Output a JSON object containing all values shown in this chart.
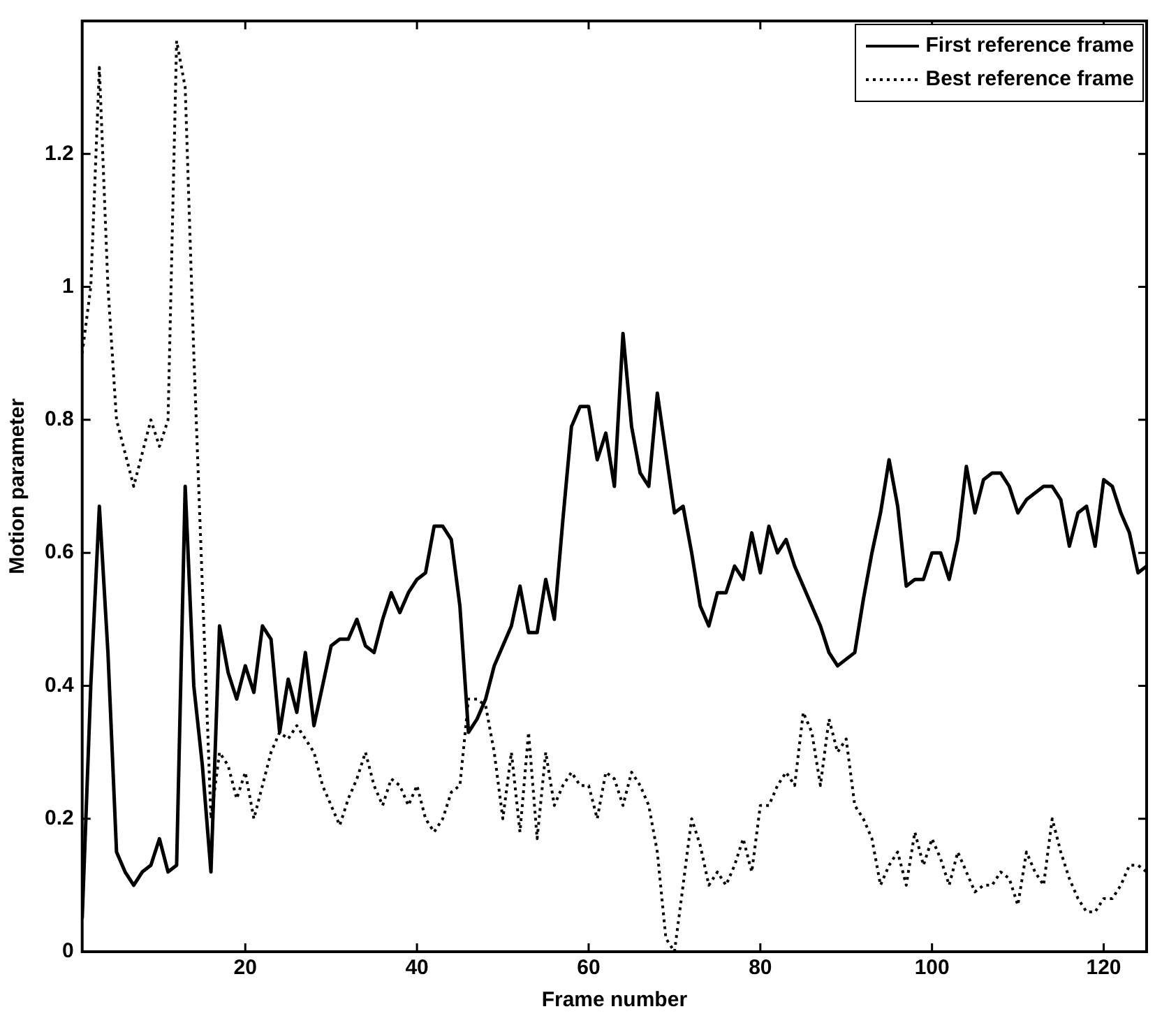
{
  "chart_data": {
    "type": "line",
    "xlabel": "Frame number",
    "ylabel": "Motion parameter",
    "x": [
      1,
      2,
      3,
      4,
      5,
      6,
      7,
      8,
      9,
      10,
      11,
      12,
      13,
      14,
      15,
      16,
      17,
      18,
      19,
      20,
      21,
      22,
      23,
      24,
      25,
      26,
      27,
      28,
      29,
      30,
      31,
      32,
      33,
      34,
      35,
      36,
      37,
      38,
      39,
      40,
      41,
      42,
      43,
      44,
      45,
      46,
      47,
      48,
      49,
      50,
      51,
      52,
      53,
      54,
      55,
      56,
      57,
      58,
      59,
      60,
      61,
      62,
      63,
      64,
      65,
      66,
      67,
      68,
      69,
      70,
      71,
      72,
      73,
      74,
      75,
      76,
      77,
      78,
      79,
      80,
      81,
      82,
      83,
      84,
      85,
      86,
      87,
      88,
      89,
      90,
      91,
      92,
      93,
      94,
      95,
      96,
      97,
      98,
      99,
      100,
      101,
      102,
      103,
      104,
      105,
      106,
      107,
      108,
      109,
      110,
      111,
      112,
      113,
      114,
      115,
      116,
      117,
      118,
      119,
      120,
      121,
      122,
      123,
      124,
      125
    ],
    "series": [
      {
        "name": "First reference frame",
        "color": "#000000",
        "line_style": "solid",
        "values": [
          0.05,
          0.4,
          0.67,
          0.45,
          0.15,
          0.12,
          0.1,
          0.12,
          0.13,
          0.17,
          0.12,
          0.13,
          0.7,
          0.4,
          0.28,
          0.12,
          0.49,
          0.42,
          0.38,
          0.43,
          0.39,
          0.49,
          0.47,
          0.33,
          0.41,
          0.36,
          0.45,
          0.34,
          0.4,
          0.46,
          0.47,
          0.47,
          0.5,
          0.46,
          0.45,
          0.5,
          0.54,
          0.51,
          0.54,
          0.56,
          0.57,
          0.64,
          0.64,
          0.62,
          0.52,
          0.33,
          0.35,
          0.38,
          0.43,
          0.46,
          0.49,
          0.55,
          0.48,
          0.48,
          0.56,
          0.5,
          0.65,
          0.79,
          0.82,
          0.82,
          0.74,
          0.78,
          0.7,
          0.93,
          0.79,
          0.72,
          0.7,
          0.84,
          0.75,
          0.66,
          0.67,
          0.6,
          0.52,
          0.49,
          0.54,
          0.54,
          0.58,
          0.56,
          0.63,
          0.57,
          0.64,
          0.6,
          0.62,
          0.58,
          0.55,
          0.52,
          0.49,
          0.45,
          0.43,
          0.44,
          0.45,
          0.53,
          0.6,
          0.66,
          0.74,
          0.67,
          0.55,
          0.56,
          0.56,
          0.6,
          0.6,
          0.56,
          0.62,
          0.73,
          0.66,
          0.71,
          0.72,
          0.72,
          0.7,
          0.66,
          0.68,
          0.69,
          0.7,
          0.7,
          0.68,
          0.61,
          0.66,
          0.67,
          0.61,
          0.71,
          0.7,
          0.66,
          0.63,
          0.57,
          0.58
        ]
      },
      {
        "name": "Best reference frame",
        "color": "#000000",
        "line_style": "dotted",
        "values": [
          0.9,
          1.0,
          1.33,
          1.0,
          0.8,
          0.75,
          0.7,
          0.75,
          0.8,
          0.76,
          0.8,
          1.37,
          1.3,
          0.9,
          0.55,
          0.2,
          0.3,
          0.28,
          0.23,
          0.27,
          0.2,
          0.25,
          0.3,
          0.33,
          0.32,
          0.34,
          0.32,
          0.3,
          0.25,
          0.22,
          0.19,
          0.23,
          0.26,
          0.3,
          0.25,
          0.22,
          0.26,
          0.25,
          0.22,
          0.25,
          0.2,
          0.18,
          0.2,
          0.24,
          0.25,
          0.38,
          0.38,
          0.37,
          0.3,
          0.2,
          0.3,
          0.18,
          0.33,
          0.17,
          0.3,
          0.22,
          0.25,
          0.27,
          0.25,
          0.25,
          0.2,
          0.27,
          0.26,
          0.22,
          0.27,
          0.25,
          0.22,
          0.15,
          0.02,
          0.0,
          0.1,
          0.2,
          0.16,
          0.1,
          0.12,
          0.1,
          0.13,
          0.17,
          0.12,
          0.22,
          0.22,
          0.25,
          0.27,
          0.25,
          0.36,
          0.33,
          0.25,
          0.35,
          0.3,
          0.32,
          0.22,
          0.2,
          0.17,
          0.1,
          0.13,
          0.15,
          0.1,
          0.18,
          0.13,
          0.17,
          0.14,
          0.1,
          0.15,
          0.12,
          0.09,
          0.1,
          0.1,
          0.12,
          0.11,
          0.07,
          0.15,
          0.12,
          0.1,
          0.2,
          0.15,
          0.11,
          0.08,
          0.06,
          0.06,
          0.08,
          0.08,
          0.1,
          0.13,
          0.13,
          0.12
        ]
      }
    ],
    "xlim": [
      1,
      125
    ],
    "xticks": [
      20,
      40,
      60,
      80,
      100,
      120
    ],
    "ylim": [
      0,
      1.4
    ],
    "yticks": [
      0,
      0.2,
      0.4,
      0.6,
      0.8,
      1,
      1.2
    ],
    "grid": false,
    "legend": "top right",
    "marker": "none"
  }
}
